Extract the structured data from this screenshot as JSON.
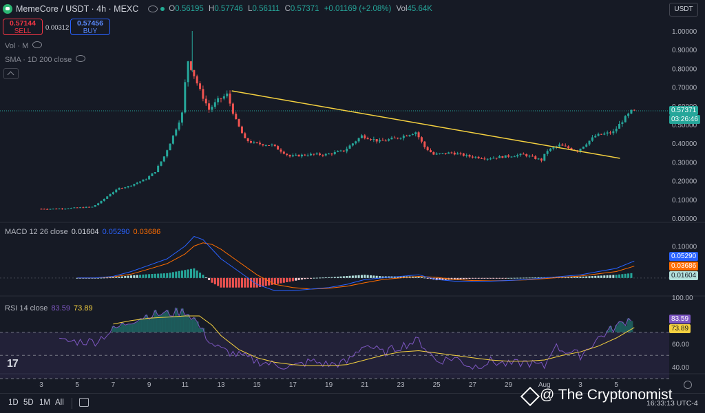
{
  "header": {
    "symbol": "MemeCore / USDT · 4h · MEXC",
    "open_label": "O",
    "open": "0.56195",
    "high_label": "H",
    "high": "0.57746",
    "low_label": "L",
    "low": "0.56111",
    "close_label": "C",
    "close": "0.57371",
    "change": "+0.01169 (+2.08%)",
    "vol_label": "Vol",
    "vol": "45.64K"
  },
  "trade": {
    "sell_price": "0.57144",
    "sell_label": "SELL",
    "spread": "0.00312",
    "buy_price": "0.57456",
    "buy_label": "BUY"
  },
  "indicators": {
    "vol": "Vol · M",
    "sma": "SMA · 1D 200 close"
  },
  "currency": "USDT",
  "price_tag": {
    "price": "0.57371",
    "countdown": "03:26:46"
  },
  "macd_legend": {
    "label": "MACD 12 26 close",
    "hist": "0.01604",
    "macd": "0.05290",
    "signal": "0.03686"
  },
  "macd_tags": [
    "0.05290",
    "0.03686",
    "0.01604"
  ],
  "rsi_legend": {
    "label": "RSI 14 close",
    "rsi": "83.59",
    "ma": "73.89"
  },
  "rsi_tags": [
    "83.59",
    "73.89"
  ],
  "bottom": {
    "tf": [
      "1D",
      "5D",
      "1M",
      "All"
    ],
    "time": "16:33:13 UTC-4"
  },
  "watermark": "@ The Cryptonomist",
  "tv_logo": "17",
  "colors": {
    "up": "#26a69a",
    "down": "#ef5350",
    "trendline": "#f5d140",
    "macd": "#2962ff",
    "signal": "#ff6d00",
    "rsi": "#7e57c2",
    "rsi_ma": "#f5d140",
    "bg": "#161a25"
  },
  "chart_data": {
    "type": "candlestick",
    "y_ticks": [
      "1.00000",
      "0.90000",
      "0.80000",
      "0.70000",
      "0.60000",
      "0.50000",
      "0.40000",
      "0.30000",
      "0.20000",
      "0.10000",
      "0.00000"
    ],
    "ylim": [
      0,
      1.0
    ],
    "x_labels": [
      "3",
      "5",
      "7",
      "9",
      "11",
      "13",
      "15",
      "17",
      "19",
      "21",
      "23",
      "25",
      "27",
      "29",
      "Aug",
      "3",
      "5"
    ],
    "price_path": [
      [
        3,
        0.05
      ],
      [
        4,
        0.05
      ],
      [
        5,
        0.055
      ],
      [
        6,
        0.06
      ],
      [
        6.5,
        0.09
      ],
      [
        7,
        0.13
      ],
      [
        7.5,
        0.16
      ],
      [
        8,
        0.17
      ],
      [
        8.5,
        0.19
      ],
      [
        9,
        0.21
      ],
      [
        9.5,
        0.25
      ],
      [
        10,
        0.33
      ],
      [
        10.5,
        0.44
      ],
      [
        11,
        0.56
      ],
      [
        11.3,
        0.85
      ],
      [
        11.6,
        0.78
      ],
      [
        12,
        0.68
      ],
      [
        12.5,
        0.58
      ],
      [
        13,
        0.63
      ],
      [
        13.5,
        0.66
      ],
      [
        14,
        0.52
      ],
      [
        14.5,
        0.42
      ],
      [
        15,
        0.4
      ],
      [
        16,
        0.39
      ],
      [
        17,
        0.33
      ],
      [
        18,
        0.34
      ],
      [
        19,
        0.34
      ],
      [
        20,
        0.36
      ],
      [
        21,
        0.44
      ],
      [
        22,
        0.41
      ],
      [
        23,
        0.43
      ],
      [
        24,
        0.46
      ],
      [
        24.5,
        0.38
      ],
      [
        25,
        0.34
      ],
      [
        26,
        0.35
      ],
      [
        27,
        0.33
      ],
      [
        28,
        0.32
      ],
      [
        29,
        0.33
      ],
      [
        30,
        0.34
      ],
      [
        31,
        0.31
      ],
      [
        31.3,
        0.36
      ],
      [
        32,
        0.39
      ],
      [
        33,
        0.36
      ],
      [
        34,
        0.44
      ],
      [
        35,
        0.46
      ],
      [
        35.5,
        0.52
      ],
      [
        36,
        0.57
      ]
    ],
    "trendline": [
      [
        13.6,
        0.68
      ],
      [
        35.2,
        0.32
      ]
    ],
    "macd": {
      "ylim": [
        -0.05,
        0.17
      ],
      "y_ticks": [
        "0.10000"
      ],
      "macd": [
        [
          5,
          0.0
        ],
        [
          6,
          0.0
        ],
        [
          7,
          0.005
        ],
        [
          8,
          0.02
        ],
        [
          9,
          0.04
        ],
        [
          10,
          0.06
        ],
        [
          11,
          0.1
        ],
        [
          11.5,
          0.13
        ],
        [
          12,
          0.12
        ],
        [
          12.5,
          0.09
        ],
        [
          13,
          0.06
        ],
        [
          14,
          0.02
        ],
        [
          15,
          -0.02
        ],
        [
          16,
          -0.04
        ],
        [
          17,
          -0.04
        ],
        [
          18,
          -0.035
        ],
        [
          19,
          -0.03
        ],
        [
          20,
          -0.02
        ],
        [
          21,
          -0.005
        ],
        [
          22,
          0.0
        ],
        [
          23,
          0.005
        ],
        [
          24,
          0.01
        ],
        [
          25,
          -0.005
        ],
        [
          26,
          -0.01
        ],
        [
          27,
          -0.01
        ],
        [
          28,
          -0.01
        ],
        [
          29,
          -0.008
        ],
        [
          30,
          -0.005
        ],
        [
          31,
          0.0
        ],
        [
          32,
          0.005
        ],
        [
          33,
          0.01
        ],
        [
          34,
          0.02
        ],
        [
          35,
          0.03
        ],
        [
          36,
          0.053
        ]
      ],
      "signal": [
        [
          5,
          0.0
        ],
        [
          6,
          0.0
        ],
        [
          7,
          0.003
        ],
        [
          8,
          0.012
        ],
        [
          9,
          0.028
        ],
        [
          10,
          0.045
        ],
        [
          11,
          0.075
        ],
        [
          11.5,
          0.1
        ],
        [
          12,
          0.11
        ],
        [
          12.5,
          0.105
        ],
        [
          13,
          0.09
        ],
        [
          14,
          0.05
        ],
        [
          15,
          0.01
        ],
        [
          16,
          -0.02
        ],
        [
          17,
          -0.03
        ],
        [
          18,
          -0.035
        ],
        [
          19,
          -0.032
        ],
        [
          20,
          -0.026
        ],
        [
          21,
          -0.015
        ],
        [
          22,
          -0.005
        ],
        [
          23,
          0.0
        ],
        [
          24,
          0.005
        ],
        [
          25,
          0.002
        ],
        [
          26,
          -0.005
        ],
        [
          27,
          -0.008
        ],
        [
          28,
          -0.009
        ],
        [
          29,
          -0.008
        ],
        [
          30,
          -0.006
        ],
        [
          31,
          -0.002
        ],
        [
          32,
          0.002
        ],
        [
          33,
          0.006
        ],
        [
          34,
          0.013
        ],
        [
          35,
          0.02
        ],
        [
          36,
          0.037
        ]
      ]
    },
    "rsi": {
      "ylim": [
        30,
        100
      ],
      "y_ticks": [
        "100.00",
        "60.00",
        "40.00"
      ],
      "rsi": [
        [
          5,
          62
        ],
        [
          6,
          62
        ],
        [
          7,
          72
        ],
        [
          8,
          80
        ],
        [
          9,
          85
        ],
        [
          10,
          86
        ],
        [
          11,
          88
        ],
        [
          11.5,
          82
        ],
        [
          12,
          70
        ],
        [
          12.5,
          60
        ],
        [
          13,
          55
        ],
        [
          14,
          50
        ],
        [
          15,
          45
        ],
        [
          16,
          42
        ],
        [
          17,
          40
        ],
        [
          18,
          45
        ],
        [
          19,
          42
        ],
        [
          20,
          44
        ],
        [
          21,
          60
        ],
        [
          22,
          52
        ],
        [
          23,
          58
        ],
        [
          24,
          63
        ],
        [
          25,
          45
        ],
        [
          26,
          48
        ],
        [
          27,
          40
        ],
        [
          28,
          45
        ],
        [
          29,
          42
        ],
        [
          30,
          44
        ],
        [
          31,
          40
        ],
        [
          31.5,
          58
        ],
        [
          32,
          55
        ],
        [
          33,
          50
        ],
        [
          34,
          65
        ],
        [
          35,
          75
        ],
        [
          36,
          84
        ]
      ],
      "ma": [
        [
          7,
          77
        ],
        [
          8,
          80
        ],
        [
          9,
          82
        ],
        [
          10,
          83
        ],
        [
          11,
          84
        ],
        [
          11.8,
          84
        ],
        [
          12.5,
          76
        ],
        [
          13,
          67
        ],
        [
          14,
          55
        ],
        [
          15,
          48
        ],
        [
          16,
          44
        ],
        [
          17,
          42
        ],
        [
          18,
          41
        ],
        [
          19,
          41
        ],
        [
          20,
          42
        ],
        [
          21,
          46
        ],
        [
          22,
          50
        ],
        [
          23,
          53
        ],
        [
          24,
          54
        ],
        [
          25,
          52
        ],
        [
          26,
          50
        ],
        [
          27,
          48
        ],
        [
          28,
          46
        ],
        [
          29,
          45
        ],
        [
          30,
          45
        ],
        [
          31,
          46
        ],
        [
          32,
          50
        ],
        [
          33,
          53
        ],
        [
          34,
          58
        ],
        [
          35,
          65
        ],
        [
          36,
          74
        ]
      ]
    }
  }
}
